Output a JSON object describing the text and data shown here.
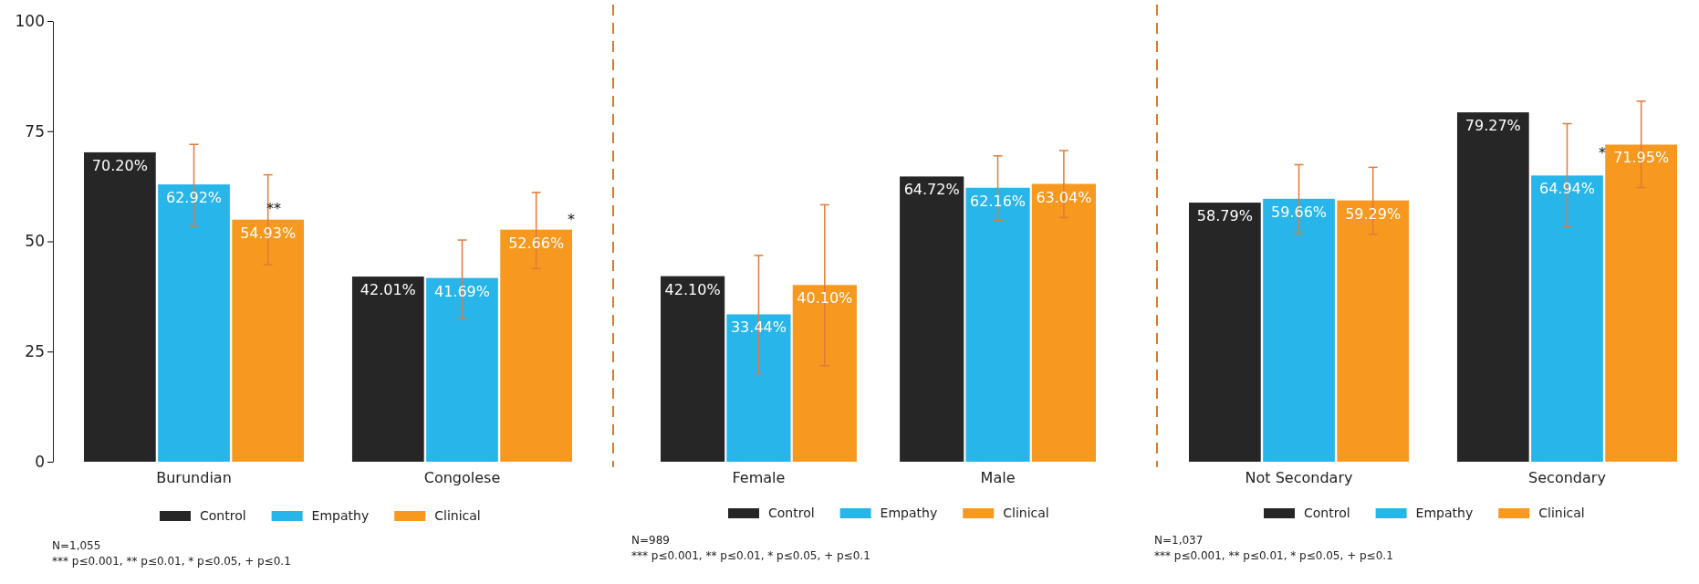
{
  "chart_data": [
    {
      "type": "bar",
      "categories": [
        "Burundian",
        "Congolese"
      ],
      "ylim": [
        0,
        100
      ],
      "yticks": [
        0,
        25,
        50,
        75,
        100
      ],
      "legend": "bottom",
      "series": [
        {
          "name": "Control",
          "color": "#262626",
          "values": [
            70.2,
            42.01
          ],
          "value_labels": [
            "70.20%",
            "42.01%"
          ]
        },
        {
          "name": "Empathy",
          "color": "#27b5ea",
          "values": [
            62.92,
            41.69
          ],
          "value_labels": [
            "62.92%",
            "41.69%"
          ],
          "errors": [
            [
              53.5,
              72.0
            ],
            [
              32.4,
              50.3
            ]
          ]
        },
        {
          "name": "Clinical",
          "color": "#f7991f",
          "values": [
            54.93,
            52.66
          ],
          "value_labels": [
            "54.93%",
            "52.66%"
          ],
          "errors": [
            [
              44.7,
              65.1
            ],
            [
              43.8,
              61.1
            ]
          ]
        }
      ],
      "annotations": [
        "**",
        "*",
        "N=1,055",
        "*** p≤0.001, ** p≤0.01, * p≤0.05, + p≤0.1"
      ]
    },
    {
      "type": "bar",
      "categories": [
        "Female",
        "Male"
      ],
      "ylim": [
        0,
        100
      ],
      "tick_labels": "x",
      "legend": "bottom",
      "series": [
        {
          "name": "Control",
          "color": "#262626",
          "values": [
            42.1,
            64.72
          ],
          "value_labels": [
            "42.10%",
            "64.72%"
          ]
        },
        {
          "name": "Empathy",
          "color": "#27b5ea",
          "values": [
            33.44,
            62.16
          ],
          "value_labels": [
            "33.44%",
            "62.16%"
          ],
          "errors": [
            [
              20.0,
              46.8
            ],
            [
              54.8,
              69.4
            ]
          ]
        },
        {
          "name": "Clinical",
          "color": "#f7991f",
          "values": [
            40.1,
            63.04
          ],
          "value_labels": [
            "40.10%",
            "63.04%"
          ],
          "errors": [
            [
              21.8,
              58.3
            ],
            [
              55.4,
              70.6
            ]
          ]
        }
      ],
      "annotations": [
        "N=989",
        "*** p≤0.001, ** p≤0.01, * p≤0.05, + p≤0.1"
      ]
    },
    {
      "type": "bar",
      "categories": [
        "Not Secondary",
        "Secondary"
      ],
      "ylim": [
        0,
        100
      ],
      "tick_labels": "x",
      "legend": "bottom",
      "series": [
        {
          "name": "Control",
          "color": "#262626",
          "values": [
            58.79,
            79.27
          ],
          "value_labels": [
            "58.79%",
            "79.27%"
          ]
        },
        {
          "name": "Empathy",
          "color": "#27b5ea",
          "values": [
            59.66,
            64.94
          ],
          "value_labels": [
            "59.66%",
            "64.94%"
          ],
          "errors": [
            [
              51.8,
              67.4
            ],
            [
              53.3,
              76.7
            ]
          ]
        },
        {
          "name": "Clinical",
          "color": "#f7991f",
          "values": [
            59.29,
            71.95
          ],
          "value_labels": [
            "59.29%",
            "71.95%"
          ],
          "errors": [
            [
              51.6,
              66.8
            ],
            [
              62.2,
              81.8
            ]
          ]
        }
      ],
      "annotations": [
        "*",
        "N=1,037",
        "*** p≤0.001, ** p≤0.01, * p≤0.05, + p≤0.1"
      ]
    }
  ]
}
